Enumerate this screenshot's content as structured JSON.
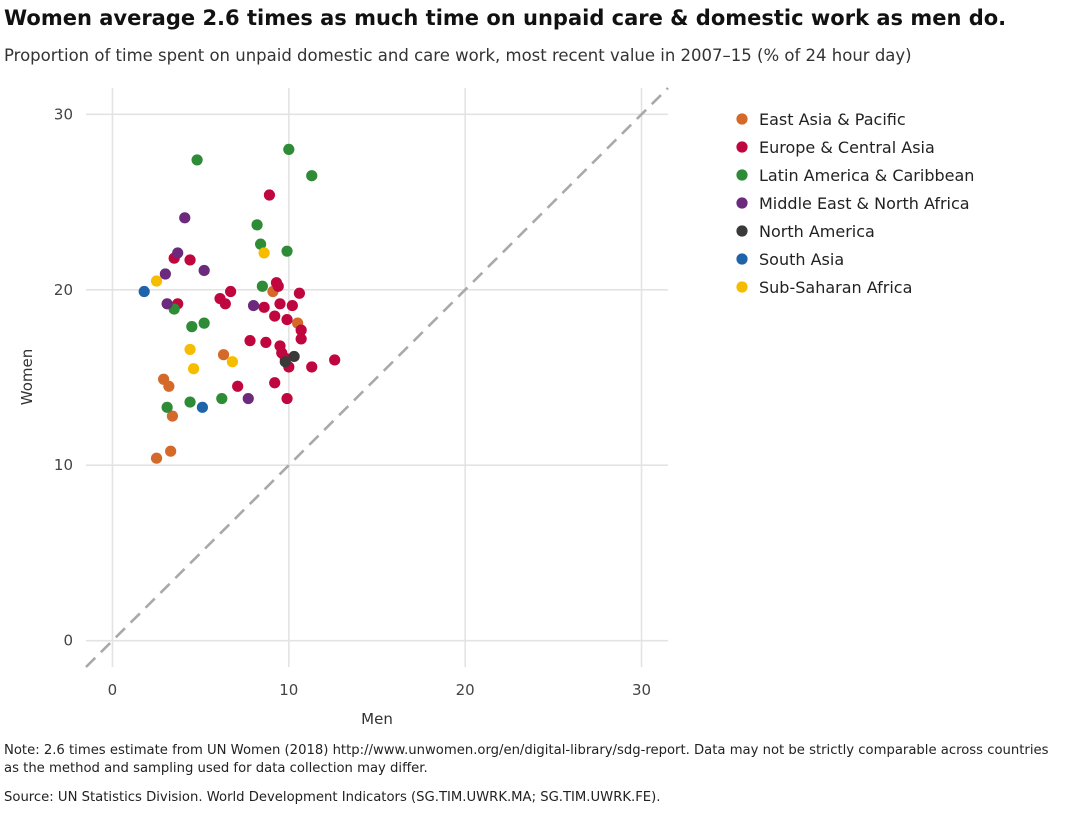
{
  "title": "Women average 2.6 times as much time on unpaid care & domestic work as men do.",
  "subtitle": "Proportion of time spent on unpaid domestic and care work, most recent value in 2007–15 (% of 24 hour day)",
  "note": "Note: 2.6 times estimate from UN Women (2018) http://www.unwomen.org/en/digital-library/sdg-report. Data may not be strictly comparable across countries as the method and sampling used for data collection may differ.",
  "source": "Source: UN Statistics Division. World Development Indicators (SG.TIM.UWRK.MA; SG.TIM.UWRK.FE).",
  "chart_data": {
    "type": "scatter",
    "xlabel": "Men",
    "ylabel": "Women",
    "xlim": [
      -1.5,
      31.5
    ],
    "ylim": [
      -1.5,
      31.5
    ],
    "xticks": [
      "0",
      "10",
      "20",
      "30"
    ],
    "yticks": [
      "0",
      "10",
      "20",
      "30"
    ],
    "grid": true,
    "reference_line": "y = x (dashed grey)",
    "legend_position": "right",
    "series": [
      {
        "name": "East Asia & Pacific",
        "color": "#d4692a",
        "points": [
          [
            2.5,
            10.4
          ],
          [
            3.3,
            10.8
          ],
          [
            2.9,
            14.9
          ],
          [
            3.2,
            14.5
          ],
          [
            3.4,
            12.8
          ],
          [
            6.3,
            16.3
          ],
          [
            9.1,
            19.9
          ],
          [
            10.5,
            18.1
          ]
        ]
      },
      {
        "name": "Europe & Central Asia",
        "color": "#c0063f",
        "points": [
          [
            3.5,
            21.8
          ],
          [
            4.4,
            21.7
          ],
          [
            3.7,
            19.2
          ],
          [
            6.1,
            19.5
          ],
          [
            6.4,
            19.2
          ],
          [
            6.7,
            19.9
          ],
          [
            8.9,
            25.4
          ],
          [
            9.3,
            20.4
          ],
          [
            9.4,
            20.2
          ],
          [
            9.5,
            19.2
          ],
          [
            8.6,
            19.0
          ],
          [
            9.2,
            18.5
          ],
          [
            9.9,
            18.3
          ],
          [
            10.2,
            19.1
          ],
          [
            10.6,
            19.8
          ],
          [
            10.7,
            17.7
          ],
          [
            10.7,
            17.2
          ],
          [
            7.8,
            17.1
          ],
          [
            8.7,
            17.0
          ],
          [
            9.5,
            16.8
          ],
          [
            9.6,
            16.4
          ],
          [
            9.8,
            16.1
          ],
          [
            10.0,
            15.6
          ],
          [
            11.3,
            15.6
          ],
          [
            12.6,
            16.0
          ],
          [
            9.2,
            14.7
          ],
          [
            7.1,
            14.5
          ],
          [
            9.9,
            13.8
          ]
        ]
      },
      {
        "name": "Latin America & Caribbean",
        "color": "#2e8b36",
        "points": [
          [
            4.8,
            27.4
          ],
          [
            10.0,
            28.0
          ],
          [
            11.3,
            26.5
          ],
          [
            8.2,
            23.7
          ],
          [
            8.4,
            22.6
          ],
          [
            9.9,
            22.2
          ],
          [
            8.5,
            20.2
          ],
          [
            3.5,
            18.9
          ],
          [
            4.5,
            17.9
          ],
          [
            5.2,
            18.1
          ],
          [
            3.1,
            13.3
          ],
          [
            4.4,
            13.6
          ],
          [
            6.2,
            13.8
          ]
        ]
      },
      {
        "name": "Middle East & North Africa",
        "color": "#6b2a7c",
        "points": [
          [
            4.1,
            24.1
          ],
          [
            3.7,
            22.1
          ],
          [
            3.0,
            20.9
          ],
          [
            5.2,
            21.1
          ],
          [
            3.1,
            19.2
          ],
          [
            8.0,
            19.1
          ],
          [
            7.7,
            13.8
          ]
        ]
      },
      {
        "name": "North America",
        "color": "#3a3a3a",
        "points": [
          [
            10.3,
            16.2
          ],
          [
            9.8,
            15.9
          ]
        ]
      },
      {
        "name": "South Asia",
        "color": "#1f63a8",
        "points": [
          [
            1.8,
            19.9
          ],
          [
            5.1,
            13.3
          ]
        ]
      },
      {
        "name": "Sub-Saharan Africa",
        "color": "#f5bc00",
        "points": [
          [
            2.5,
            20.5
          ],
          [
            8.6,
            22.1
          ],
          [
            4.4,
            16.6
          ],
          [
            6.8,
            15.9
          ],
          [
            4.6,
            15.5
          ]
        ]
      }
    ]
  }
}
